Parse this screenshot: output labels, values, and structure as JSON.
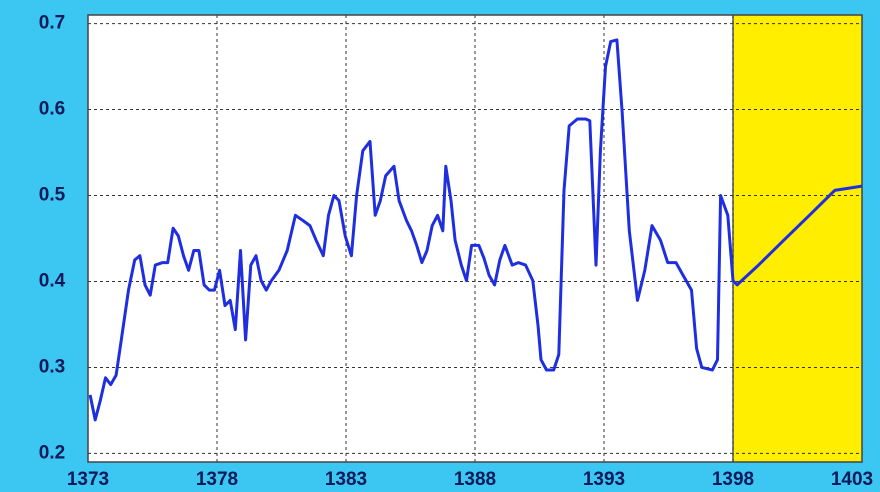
{
  "chart_data": {
    "type": "line",
    "x": [
      1373.08,
      1373.28,
      1373.48,
      1373.68,
      1373.88,
      1374.09,
      1374.29,
      1374.57,
      1374.81,
      1375.01,
      1375.21,
      1375.41,
      1375.61,
      1375.89,
      1376.09,
      1376.3,
      1376.5,
      1376.7,
      1376.9,
      1377.1,
      1377.3,
      1377.5,
      1377.7,
      1377.9,
      1378.1,
      1378.31,
      1378.51,
      1378.71,
      1378.91,
      1379.11,
      1379.31,
      1379.51,
      1379.71,
      1379.91,
      1380.11,
      1380.4,
      1380.72,
      1381.04,
      1381.32,
      1381.6,
      1381.84,
      1382.12,
      1382.32,
      1382.53,
      1382.73,
      1382.97,
      1383.21,
      1383.41,
      1383.65,
      1383.93,
      1384.13,
      1384.33,
      1384.54,
      1384.86,
      1385.06,
      1385.34,
      1385.54,
      1385.74,
      1385.94,
      1386.14,
      1386.34,
      1386.55,
      1386.75,
      1386.87,
      1387.07,
      1387.23,
      1387.47,
      1387.67,
      1387.87,
      1388.15,
      1388.35,
      1388.55,
      1388.76,
      1388.96,
      1389.16,
      1389.44,
      1389.68,
      1389.96,
      1390.24,
      1390.44,
      1390.56,
      1390.77,
      1391.05,
      1391.25,
      1391.45,
      1391.65,
      1391.97,
      1392.29,
      1392.45,
      1392.69,
      1392.86,
      1393.06,
      1393.26,
      1393.5,
      1393.7,
      1393.98,
      1394.3,
      1394.58,
      1394.86,
      1395.19,
      1395.47,
      1395.79,
      1396.07,
      1396.39,
      1396.59,
      1396.79,
      1397.2,
      1397.4,
      1397.52,
      1397.8,
      1398.0,
      1398.16,
      1398.99,
      1399.97,
      1400.96,
      1401.94,
      1403
    ],
    "values": [
      0.268,
      0.239,
      0.262,
      0.288,
      0.28,
      0.291,
      0.332,
      0.39,
      0.425,
      0.43,
      0.396,
      0.384,
      0.419,
      0.422,
      0.422,
      0.462,
      0.453,
      0.43,
      0.413,
      0.436,
      0.436,
      0.396,
      0.39,
      0.39,
      0.413,
      0.372,
      0.378,
      0.344,
      0.436,
      0.332,
      0.419,
      0.43,
      0.401,
      0.39,
      0.401,
      0.413,
      0.436,
      0.477,
      0.471,
      0.465,
      0.448,
      0.43,
      0.477,
      0.5,
      0.494,
      0.453,
      0.43,
      0.5,
      0.552,
      0.563,
      0.477,
      0.494,
      0.523,
      0.534,
      0.494,
      0.471,
      0.459,
      0.442,
      0.422,
      0.436,
      0.465,
      0.477,
      0.459,
      0.534,
      0.494,
      0.448,
      0.419,
      0.401,
      0.442,
      0.442,
      0.427,
      0.407,
      0.396,
      0.425,
      0.442,
      0.419,
      0.422,
      0.419,
      0.401,
      0.349,
      0.309,
      0.297,
      0.297,
      0.315,
      0.506,
      0.581,
      0.589,
      0.589,
      0.587,
      0.419,
      0.552,
      0.65,
      0.679,
      0.681,
      0.598,
      0.459,
      0.378,
      0.413,
      0.465,
      0.448,
      0.422,
      0.422,
      0.407,
      0.39,
      0.322,
      0.3,
      0.297,
      0.309,
      0.5,
      0.477,
      0.401,
      0.396,
      0.419,
      0.448,
      0.477,
      0.506,
      0.511
    ],
    "color": "#1f2fe0",
    "xlim": [
      1373,
      1403
    ],
    "xticks": [
      1373,
      1378,
      1383,
      1388,
      1393,
      1398,
      1403
    ],
    "ylim": [
      0.19,
      0.71
    ],
    "yticks": [
      0.2,
      0.3,
      0.4,
      0.5,
      0.6,
      0.7
    ],
    "grid": true,
    "shaded_x": [
      1398,
      1403
    ],
    "shaded_color": "#ffee00"
  }
}
